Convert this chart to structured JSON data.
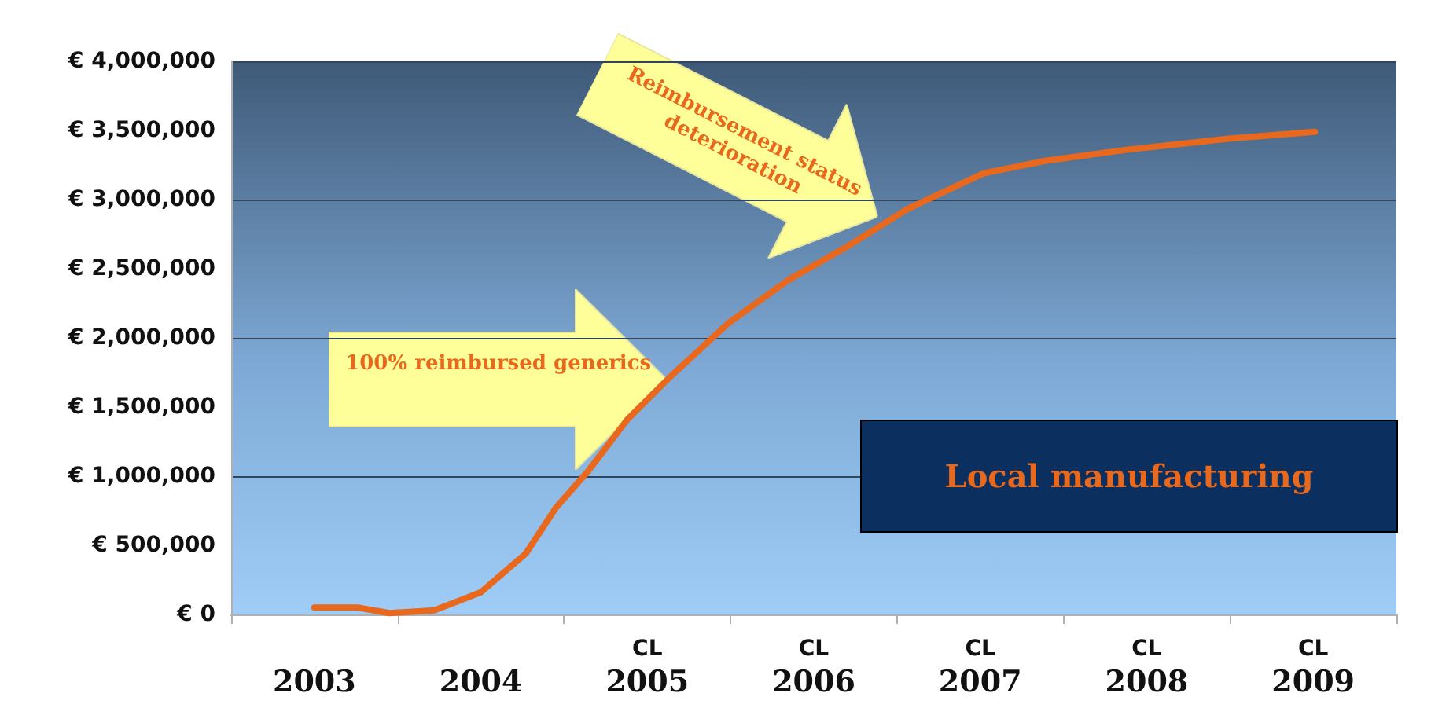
{
  "chart_data": {
    "type": "line",
    "x": [
      2003.0,
      2003.26,
      2003.45,
      2003.72,
      2004.0,
      2004.27,
      2004.45,
      2004.64,
      2004.88,
      2005.13,
      2005.49,
      2005.85,
      2006.2,
      2006.56,
      2007.02,
      2007.39,
      2007.88,
      2008.49,
      2009.01
    ],
    "series": [
      {
        "color": "#e8691e",
        "values": [
          50000,
          50000,
          10000,
          30000,
          160000,
          440000,
          770000,
          1030000,
          1410000,
          1710000,
          2110000,
          2420000,
          2660000,
          2930000,
          3190000,
          3280000,
          3360000,
          3440000,
          3490000
        ]
      }
    ],
    "xlim": [
      2002.5,
      2009.5
    ],
    "xticks": [
      {
        "value": 2002.5,
        "label": null
      },
      {
        "value": 2003,
        "label": "2003"
      },
      {
        "value": 2003.5,
        "label": null
      },
      {
        "value": 2004,
        "label": "2004"
      },
      {
        "value": 2004.5,
        "label": null
      },
      {
        "value": 2005,
        "label": "CL\n2005"
      },
      {
        "value": 2005.5,
        "label": null
      },
      {
        "value": 2006,
        "label": "CL\n2006"
      },
      {
        "value": 2006.5,
        "label": null
      },
      {
        "value": 2007,
        "label": "CL\n2007"
      },
      {
        "value": 2007.5,
        "label": null
      },
      {
        "value": 2008,
        "label": "CL\n2008"
      },
      {
        "value": 2008.5,
        "label": null
      },
      {
        "value": 2009,
        "label": "CL\n2009"
      },
      {
        "value": 2009.5,
        "label": null
      }
    ],
    "ylim": [
      0,
      4000000
    ],
    "yticks": [
      {
        "value": 0,
        "label": "€ 0"
      },
      {
        "value": 500000,
        "label": "€ 500,000"
      },
      {
        "value": 1000000,
        "label": "€ 1,000,000"
      },
      {
        "value": 1500000,
        "label": "€ 1,500,000"
      },
      {
        "value": 2000000,
        "label": "€ 2,000,000"
      },
      {
        "value": 2500000,
        "label": "€ 2,500,000"
      },
      {
        "value": 3000000,
        "label": "€ 3,000,000"
      },
      {
        "value": 3500000,
        "label": "€ 3,500,000"
      },
      {
        "value": 4000000,
        "label": "€ 4,000,000"
      }
    ],
    "annotations": [
      {
        "text": "100% reimbursed generics",
        "x": 2005.12,
        "y": 1700000
      },
      {
        "text": "Reimbursement status deterioration",
        "x": 2006.38,
        "y": 2880000
      },
      "Local manufacturing"
    ],
    "grid": "y",
    "marker": "none",
    "line_style": "solid"
  }
}
